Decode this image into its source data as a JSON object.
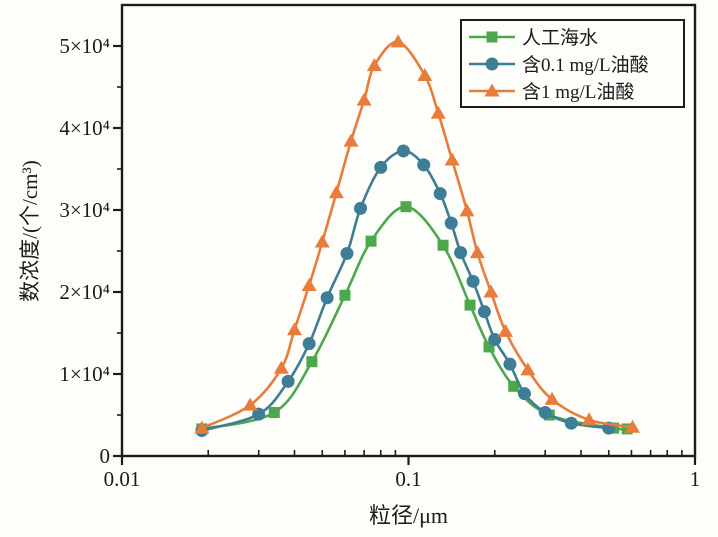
{
  "colors": {
    "background": "#fdfdfa",
    "axis": "#1b1b1b",
    "text": "#1b1b1b",
    "legend_border": "#1c1c1c"
  },
  "chart_data": {
    "type": "line",
    "x_scale": "log",
    "y_scale": "linear",
    "grid": false,
    "title": "",
    "xlabel": "粒径/μm",
    "ylabel": "数浓度/(个/cm³)",
    "xlim": [
      0.01,
      1
    ],
    "ylim": [
      0,
      55000
    ],
    "legend_position": "top-right",
    "x_ticks": [
      {
        "value": 0.01,
        "label": "0.01"
      },
      {
        "value": 0.1,
        "label": "0.1"
      },
      {
        "value": 1,
        "label": "1"
      }
    ],
    "x_minor_ticks": [
      0.02,
      0.03,
      0.04,
      0.05,
      0.06,
      0.07,
      0.08,
      0.09,
      0.2,
      0.3,
      0.4,
      0.5,
      0.6,
      0.7,
      0.8,
      0.9
    ],
    "y_ticks": [
      {
        "value": 0,
        "label": "0"
      },
      {
        "value": 10000,
        "label": "1×10⁴"
      },
      {
        "value": 20000,
        "label": "2×10⁴"
      },
      {
        "value": 30000,
        "label": "3×10⁴"
      },
      {
        "value": 40000,
        "label": "4×10⁴"
      },
      {
        "value": 50000,
        "label": "5×10⁴"
      }
    ],
    "y_minor_step": 5000,
    "series": [
      {
        "name": "人工海水",
        "color": "#4ba84d",
        "marker": "square",
        "x": [
          0.019,
          0.034,
          0.046,
          0.06,
          0.074,
          0.098,
          0.132,
          0.164,
          0.191,
          0.233,
          0.31,
          0.52,
          0.58
        ],
        "y": [
          3300,
          5300,
          11500,
          19600,
          26200,
          30400,
          25700,
          18400,
          13300,
          8500,
          5000,
          3400,
          3300
        ]
      },
      {
        "name": "含0.1 mg/L油酸",
        "color": "#3e7d96",
        "marker": "circle",
        "x": [
          0.019,
          0.03,
          0.038,
          0.045,
          0.052,
          0.061,
          0.068,
          0.08,
          0.096,
          0.113,
          0.129,
          0.141,
          0.152,
          0.168,
          0.184,
          0.2,
          0.226,
          0.254,
          0.3,
          0.37,
          0.5
        ],
        "y": [
          3100,
          5100,
          9100,
          13700,
          19300,
          24700,
          30200,
          35200,
          37200,
          35500,
          32000,
          28400,
          24800,
          21300,
          17600,
          14200,
          11200,
          7600,
          5300,
          4000,
          3400
        ]
      },
      {
        "name": "含1 mg/L油酸",
        "color": "#e87c3b",
        "marker": "triangle",
        "x": [
          0.019,
          0.028,
          0.036,
          0.04,
          0.045,
          0.05,
          0.056,
          0.063,
          0.07,
          0.076,
          0.092,
          0.114,
          0.127,
          0.142,
          0.16,
          0.174,
          0.194,
          0.218,
          0.261,
          0.317,
          0.427,
          0.605
        ],
        "y": [
          3400,
          6200,
          10700,
          15400,
          20800,
          26100,
          32100,
          38400,
          43400,
          47600,
          50500,
          46400,
          41800,
          36100,
          29900,
          24800,
          20000,
          15200,
          10500,
          6900,
          4400,
          3500
        ]
      }
    ]
  }
}
